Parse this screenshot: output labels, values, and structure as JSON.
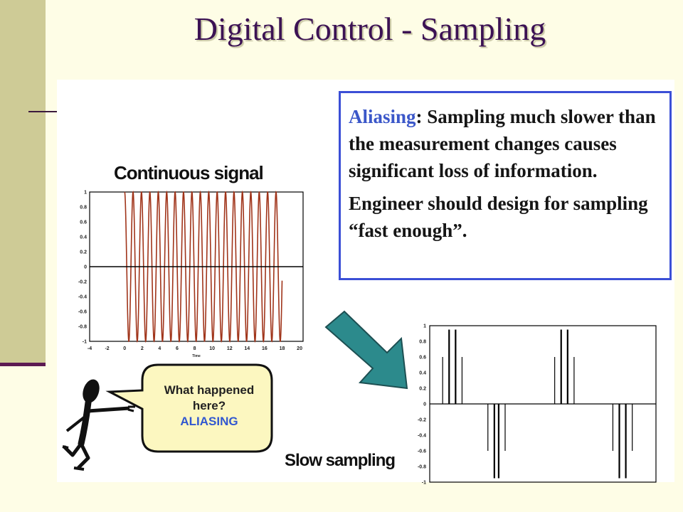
{
  "slide": {
    "title": "Digital Control - Sampling"
  },
  "aliasing_box": {
    "term": "Aliasing",
    "definition_rest": ": Sampling much slower than the measurement changes causes significant loss of information.",
    "advice": "Engineer should design for sampling “fast enough”."
  },
  "speech_bubble": {
    "question": "What happened here?",
    "answer": "ALIASING"
  },
  "arrow": {
    "color": "#2c8a8c"
  },
  "colors": {
    "signal": "#a0341a",
    "box_border": "#3b4fd6",
    "title": "#3c1254"
  },
  "chart_data": [
    {
      "type": "line",
      "title": "Continuous signal",
      "xlabel": "Time",
      "ylabel": "",
      "xlim": [
        -4,
        20.4
      ],
      "ylim": [
        -1,
        1
      ],
      "x_ticks": [
        "-4",
        "-2",
        "0",
        "2",
        "4",
        "6",
        "8",
        "10",
        "12",
        "14",
        "16",
        "18",
        "20"
      ],
      "y_ticks": [
        "1",
        "0.8",
        "0.6",
        "0.4",
        "0.2",
        "0",
        "-0.2",
        "-0.4",
        "-0.6",
        "-0.8",
        "-1"
      ],
      "series": [
        {
          "x_range": [
            0,
            18
          ],
          "frequency": 1.04,
          "amplitude": 1
        }
      ]
    },
    {
      "type": "bar",
      "title": "Slow sampling",
      "xlabel": "",
      "ylabel": "",
      "ylim": [
        -1,
        1
      ],
      "y_ticks": [
        "1",
        "0.8",
        "0.6",
        "0.4",
        "0.2",
        "0",
        "-0.2",
        "-0.4",
        "-0.6",
        "-0.8",
        "-1"
      ],
      "x": [
        0.6,
        0.9,
        1.2,
        1.5,
        2.7,
        3.0,
        3.2,
        3.5,
        5.8,
        6.1,
        6.4,
        6.7,
        8.5,
        8.8,
        9.1,
        9.4
      ],
      "values": [
        0.6,
        0.95,
        0.95,
        0.6,
        -0.6,
        -0.95,
        -0.95,
        -0.6,
        0.6,
        0.95,
        0.95,
        0.6,
        -0.6,
        -0.95,
        -0.95,
        -0.6
      ],
      "xlim": [
        0,
        10.5
      ]
    }
  ]
}
